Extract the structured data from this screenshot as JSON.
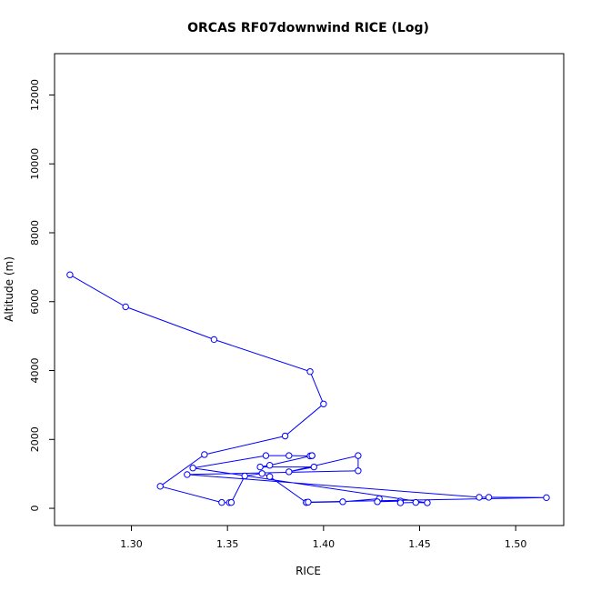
{
  "chart_data": {
    "type": "line",
    "title": "ORCAS RF07downwind RICE (Log)",
    "xlabel": "RICE",
    "ylabel": "Altitude (m)",
    "xlim": [
      1.26,
      1.525
    ],
    "ylim": [
      -500,
      13200
    ],
    "x_ticks": [
      1.3,
      1.35,
      1.4,
      1.45,
      1.5
    ],
    "x_tick_labels": [
      "1.30",
      "1.35",
      "1.40",
      "1.45",
      "1.50"
    ],
    "y_ticks": [
      0,
      2000,
      4000,
      6000,
      8000,
      10000,
      12000
    ],
    "y_tick_labels": [
      "0",
      "2000",
      "4000",
      "6000",
      "8000",
      "10000",
      "12000"
    ],
    "grid": false,
    "legend": "none",
    "line_color": "#0000ff",
    "marker": "open-circle",
    "series": [
      {
        "x": [
          1.268,
          1.297,
          1.343,
          1.393,
          1.4,
          1.38,
          1.338,
          1.315,
          1.347,
          1.351,
          1.352,
          1.359,
          1.368,
          1.372,
          1.391,
          1.391,
          1.41,
          1.429,
          1.428,
          1.44,
          1.44,
          1.448,
          1.454,
          1.332,
          1.37,
          1.382,
          1.393,
          1.394,
          1.394,
          1.372,
          1.367,
          1.395,
          1.382,
          1.418,
          1.418,
          1.329,
          1.481,
          1.486,
          1.516,
          1.392
        ],
        "y": [
          6780,
          5850,
          4900,
          3970,
          3030,
          2100,
          1560,
          640,
          170,
          165,
          170,
          940,
          1010,
          920,
          170,
          170,
          190,
          280,
          190,
          210,
          160,
          170,
          160,
          1170,
          1530,
          1530,
          1520,
          1530,
          1530,
          1250,
          1200,
          1200,
          1060,
          1530,
          1090,
          980,
          320,
          320,
          310,
          180
        ]
      }
    ]
  }
}
